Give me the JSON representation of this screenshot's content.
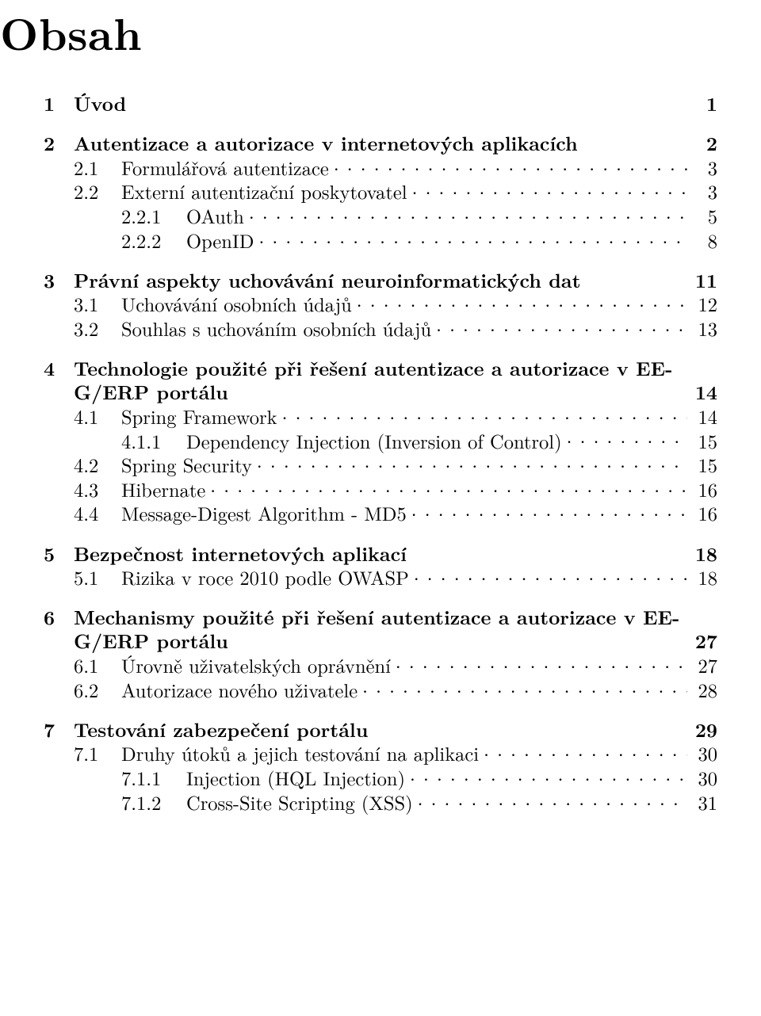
{
  "title": "Obsah",
  "toc": [
    {
      "num": "1",
      "title": "Úvod",
      "page": "1",
      "sections": []
    },
    {
      "num": "2",
      "title": "Autentizace a autorizace v internetových aplikacích",
      "page": "2",
      "sections": [
        {
          "num": "2.1",
          "title": "Formulářová autentizace",
          "page": "3"
        },
        {
          "num": "2.2",
          "title": "Externí autentizační poskytovatel",
          "page": "3"
        },
        {
          "num": "2.2.1",
          "title": "OAuth",
          "page": "5",
          "sub": true
        },
        {
          "num": "2.2.2",
          "title": "OpenID",
          "page": "8",
          "sub": true
        }
      ]
    },
    {
      "num": "3",
      "title": "Právní aspekty uchovávání neuroinformatických dat",
      "page": "11",
      "sections": [
        {
          "num": "3.1",
          "title": "Uchovávání osobních údajů",
          "page": "12"
        },
        {
          "num": "3.2",
          "title": "Souhlas s uchováním osobních údajů",
          "page": "13"
        }
      ]
    },
    {
      "num": "4",
      "title_line1": "Technologie použité při řešení autentizace a autorizace v EE-",
      "title_line2": "G/ERP portálu",
      "page": "14",
      "multiline": true,
      "sections": [
        {
          "num": "4.1",
          "title": "Spring Framework",
          "page": "14"
        },
        {
          "num": "4.1.1",
          "title": "Dependency Injection (Inversion of Control)",
          "page": "15",
          "sub": true
        },
        {
          "num": "4.2",
          "title": "Spring Security",
          "page": "15"
        },
        {
          "num": "4.3",
          "title": "Hibernate",
          "page": "16"
        },
        {
          "num": "4.4",
          "title": "Message-Digest Algorithm - MD5",
          "page": "16"
        }
      ]
    },
    {
      "num": "5",
      "title": "Bezpečnost internetových aplikací",
      "page": "18",
      "sections": [
        {
          "num": "5.1",
          "title": "Rizika v roce 2010 podle OWASP",
          "page": "18"
        }
      ]
    },
    {
      "num": "6",
      "title_line1": "Mechanismy použité při řešení autentizace a autorizace v EE-",
      "title_line2": "G/ERP portálu",
      "page": "27",
      "multiline": true,
      "sections": [
        {
          "num": "6.1",
          "title": "Úrovně uživatelských oprávnění",
          "page": "27"
        },
        {
          "num": "6.2",
          "title": "Autorizace nového uživatele",
          "page": "28"
        }
      ]
    },
    {
      "num": "7",
      "title": "Testování zabezpečení portálu",
      "page": "29",
      "sections": [
        {
          "num": "7.1",
          "title": "Druhy útoků a jejich testování na aplikaci",
          "page": "30"
        },
        {
          "num": "7.1.1",
          "title": "Injection (HQL Injection)",
          "page": "30",
          "sub": true
        },
        {
          "num": "7.1.2",
          "title": "Cross-Site Scripting (XSS)",
          "page": "31",
          "sub": true
        }
      ]
    }
  ]
}
